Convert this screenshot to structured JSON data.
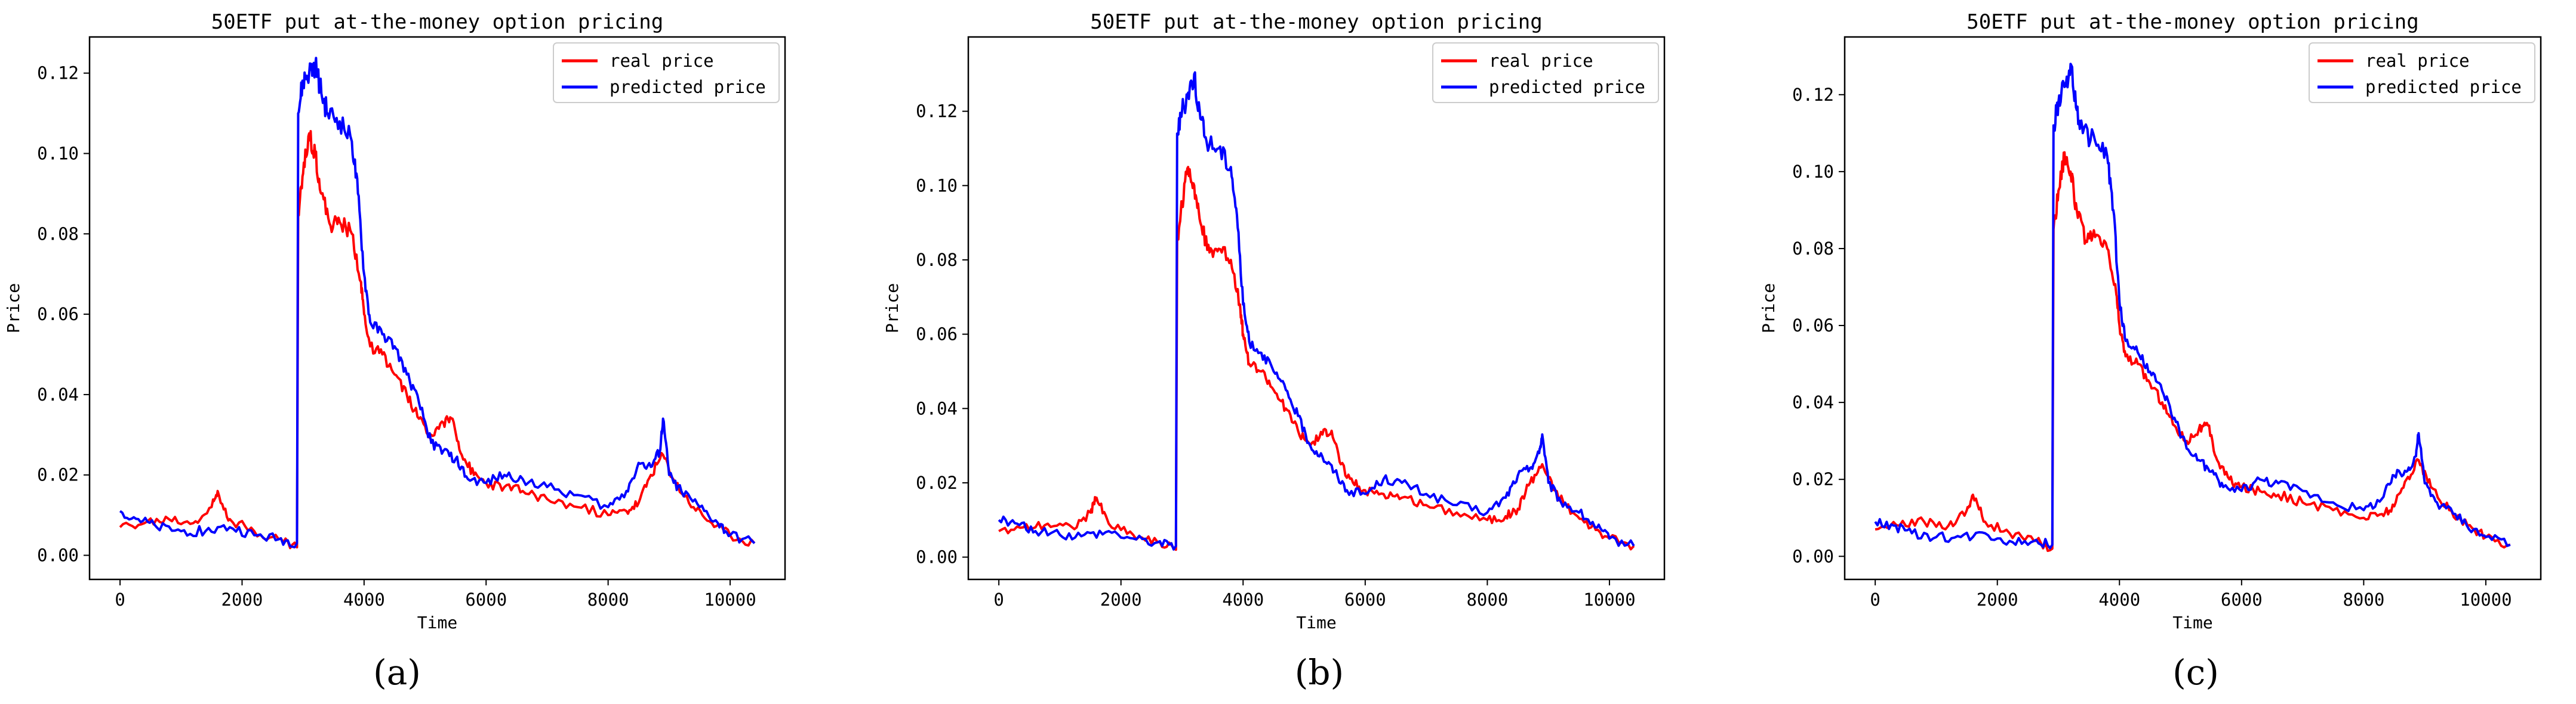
{
  "chart_data": [
    {
      "type": "line",
      "panel": "(a)",
      "title": "50ETF put at-the-money option pricing",
      "xlabel": "Time",
      "ylabel": "Price",
      "xlim": [
        -500,
        10900
      ],
      "ylim": [
        -0.006,
        0.129
      ],
      "xticks": [
        0,
        2000,
        4000,
        6000,
        8000,
        10000
      ],
      "yticks": [
        0.0,
        0.02,
        0.04,
        0.06,
        0.08,
        0.1,
        0.12
      ],
      "legend_location": "upper-right",
      "series": [
        {
          "name": "real price",
          "color": "#ff0000",
          "x": [
            0,
            400,
            800,
            1200,
            1500,
            1600,
            1800,
            2200,
            2600,
            2900,
            2920,
            3000,
            3100,
            3200,
            3300,
            3450,
            3600,
            3800,
            3950,
            4000,
            4100,
            4300,
            4500,
            4700,
            4900,
            5100,
            5300,
            5450,
            5600,
            5800,
            6000,
            6300,
            6600,
            7000,
            7500,
            8000,
            8300,
            8500,
            8700,
            8900,
            9100,
            9400,
            9700,
            10000,
            10400
          ],
          "values": [
            0.007,
            0.008,
            0.009,
            0.008,
            0.012,
            0.016,
            0.009,
            0.006,
            0.004,
            0.002,
            0.085,
            0.095,
            0.105,
            0.1,
            0.09,
            0.082,
            0.083,
            0.08,
            0.068,
            0.06,
            0.052,
            0.05,
            0.045,
            0.04,
            0.034,
            0.03,
            0.033,
            0.034,
            0.025,
            0.02,
            0.018,
            0.017,
            0.016,
            0.014,
            0.012,
            0.01,
            0.011,
            0.013,
            0.02,
            0.025,
            0.018,
            0.012,
            0.008,
            0.005,
            0.003
          ]
        },
        {
          "name": "predicted price",
          "color": "#0000ff",
          "x": [
            0,
            300,
            600,
            1000,
            1400,
            1800,
            2200,
            2600,
            2900,
            2920,
            3000,
            3100,
            3200,
            3300,
            3400,
            3600,
            3800,
            3900,
            4000,
            4100,
            4300,
            4500,
            4700,
            4900,
            5100,
            5300,
            5500,
            5700,
            6000,
            6300,
            6600,
            7000,
            7500,
            8000,
            8300,
            8500,
            8700,
            8850,
            8900,
            9000,
            9200,
            9500,
            9800,
            10000,
            10400
          ],
          "values": [
            0.011,
            0.009,
            0.007,
            0.006,
            0.006,
            0.007,
            0.005,
            0.004,
            0.003,
            0.11,
            0.118,
            0.12,
            0.122,
            0.115,
            0.11,
            0.108,
            0.103,
            0.09,
            0.07,
            0.058,
            0.055,
            0.052,
            0.045,
            0.038,
            0.028,
            0.026,
            0.024,
            0.019,
            0.018,
            0.02,
            0.019,
            0.017,
            0.015,
            0.012,
            0.016,
            0.023,
            0.022,
            0.026,
            0.034,
            0.02,
            0.016,
            0.012,
            0.008,
            0.005,
            0.003
          ]
        }
      ]
    },
    {
      "type": "line",
      "panel": "(b)",
      "title": "50ETF put at-the-money option pricing",
      "xlabel": "Time",
      "ylabel": "Price",
      "xlim": [
        -500,
        10900
      ],
      "ylim": [
        -0.006,
        0.14
      ],
      "xticks": [
        0,
        2000,
        4000,
        6000,
        8000,
        10000
      ],
      "yticks": [
        0.0,
        0.02,
        0.04,
        0.06,
        0.08,
        0.1,
        0.12
      ],
      "legend_location": "upper-right",
      "series": [
        {
          "name": "real price",
          "color": "#ff0000",
          "x": [
            0,
            400,
            800,
            1200,
            1500,
            1600,
            1800,
            2200,
            2600,
            2900,
            2920,
            3000,
            3100,
            3200,
            3300,
            3450,
            3600,
            3800,
            3950,
            4000,
            4100,
            4300,
            4500,
            4700,
            4900,
            5100,
            5300,
            5450,
            5600,
            5800,
            6000,
            6300,
            6600,
            7000,
            7500,
            8000,
            8300,
            8500,
            8700,
            8900,
            9100,
            9400,
            9700,
            10000,
            10400
          ],
          "values": [
            0.007,
            0.008,
            0.009,
            0.008,
            0.012,
            0.016,
            0.009,
            0.006,
            0.004,
            0.002,
            0.085,
            0.095,
            0.105,
            0.1,
            0.09,
            0.082,
            0.083,
            0.08,
            0.068,
            0.06,
            0.052,
            0.05,
            0.045,
            0.04,
            0.034,
            0.03,
            0.033,
            0.034,
            0.025,
            0.02,
            0.018,
            0.017,
            0.016,
            0.014,
            0.012,
            0.01,
            0.011,
            0.013,
            0.02,
            0.025,
            0.018,
            0.012,
            0.008,
            0.005,
            0.003
          ]
        },
        {
          "name": "predicted price",
          "color": "#0000ff",
          "x": [
            0,
            300,
            600,
            1000,
            1400,
            1800,
            2200,
            2600,
            2900,
            2920,
            3000,
            3100,
            3200,
            3300,
            3400,
            3600,
            3800,
            3900,
            4000,
            4100,
            4300,
            4500,
            4700,
            4900,
            5100,
            5300,
            5500,
            5700,
            6000,
            6300,
            6600,
            7000,
            7500,
            8000,
            8300,
            8500,
            8700,
            8850,
            8900,
            9000,
            9200,
            9500,
            9800,
            10000,
            10400
          ],
          "values": [
            0.01,
            0.009,
            0.007,
            0.006,
            0.006,
            0.007,
            0.005,
            0.004,
            0.003,
            0.114,
            0.12,
            0.125,
            0.13,
            0.118,
            0.112,
            0.11,
            0.105,
            0.092,
            0.068,
            0.058,
            0.055,
            0.05,
            0.045,
            0.038,
            0.03,
            0.027,
            0.023,
            0.018,
            0.017,
            0.021,
            0.02,
            0.017,
            0.014,
            0.012,
            0.016,
            0.022,
            0.024,
            0.028,
            0.033,
            0.02,
            0.015,
            0.012,
            0.008,
            0.005,
            0.003
          ]
        }
      ]
    },
    {
      "type": "line",
      "panel": "(c)",
      "title": "50ETF put at-the-money option pricing",
      "xlabel": "Time",
      "ylabel": "Price",
      "xlim": [
        -500,
        10900
      ],
      "ylim": [
        -0.006,
        0.135
      ],
      "xticks": [
        0,
        2000,
        4000,
        6000,
        8000,
        10000
      ],
      "yticks": [
        0.0,
        0.02,
        0.04,
        0.06,
        0.08,
        0.1,
        0.12
      ],
      "legend_location": "upper-right",
      "series": [
        {
          "name": "real price",
          "color": "#ff0000",
          "x": [
            0,
            400,
            800,
            1200,
            1500,
            1600,
            1800,
            2200,
            2600,
            2900,
            2920,
            3000,
            3100,
            3200,
            3300,
            3450,
            3600,
            3800,
            3950,
            4000,
            4100,
            4300,
            4500,
            4700,
            4900,
            5100,
            5300,
            5450,
            5600,
            5800,
            6000,
            6300,
            6600,
            7000,
            7500,
            8000,
            8300,
            8500,
            8700,
            8900,
            9100,
            9400,
            9700,
            10000,
            10400
          ],
          "values": [
            0.007,
            0.008,
            0.009,
            0.008,
            0.012,
            0.016,
            0.009,
            0.006,
            0.004,
            0.002,
            0.085,
            0.095,
            0.105,
            0.1,
            0.09,
            0.082,
            0.083,
            0.08,
            0.068,
            0.06,
            0.052,
            0.05,
            0.045,
            0.04,
            0.034,
            0.03,
            0.033,
            0.034,
            0.025,
            0.02,
            0.018,
            0.017,
            0.016,
            0.014,
            0.012,
            0.01,
            0.011,
            0.013,
            0.02,
            0.025,
            0.018,
            0.012,
            0.008,
            0.005,
            0.003
          ]
        },
        {
          "name": "predicted price",
          "color": "#0000ff",
          "x": [
            0,
            300,
            600,
            1000,
            1400,
            1800,
            2200,
            2600,
            2900,
            2920,
            3000,
            3100,
            3200,
            3300,
            3400,
            3600,
            3800,
            3900,
            4000,
            4100,
            4300,
            4500,
            4700,
            4900,
            5100,
            5300,
            5500,
            5700,
            6000,
            6300,
            6600,
            7000,
            7500,
            8000,
            8300,
            8500,
            8700,
            8850,
            8900,
            9000,
            9200,
            9500,
            9800,
            10000,
            10400
          ],
          "values": [
            0.009,
            0.008,
            0.006,
            0.005,
            0.005,
            0.006,
            0.004,
            0.004,
            0.003,
            0.112,
            0.118,
            0.122,
            0.128,
            0.116,
            0.11,
            0.108,
            0.104,
            0.09,
            0.066,
            0.056,
            0.053,
            0.048,
            0.043,
            0.036,
            0.028,
            0.025,
            0.022,
            0.018,
            0.017,
            0.02,
            0.019,
            0.017,
            0.014,
            0.012,
            0.015,
            0.021,
            0.022,
            0.026,
            0.032,
            0.019,
            0.014,
            0.011,
            0.007,
            0.005,
            0.003
          ]
        }
      ]
    }
  ]
}
